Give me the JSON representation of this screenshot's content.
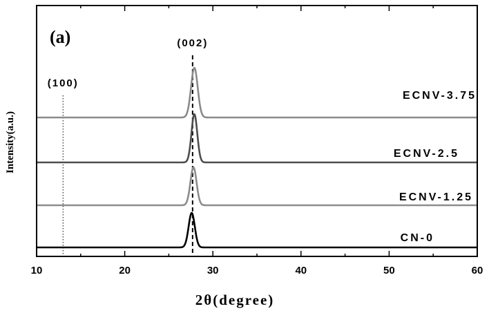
{
  "chart_data": {
    "type": "line",
    "panel_label": "(a)",
    "xlabel": "2θ(degree)",
    "ylabel": "Intensity(a.u.)",
    "xlim": [
      10,
      60
    ],
    "xticks": [
      10,
      20,
      30,
      40,
      50,
      60
    ],
    "y_ticks_shown": false,
    "grid": false,
    "annotations": [
      {
        "text": "(002)",
        "x": 27.7,
        "line_style": "dashed"
      },
      {
        "text": "(100)",
        "x": 13.0,
        "line_style": "dotted"
      }
    ],
    "series": [
      {
        "name": "CN-0",
        "color": "#000000",
        "offset": 0,
        "peaks": [
          {
            "x": 27.6,
            "height": 50,
            "width": 0.35
          }
        ]
      },
      {
        "name": "ECNV-1.25",
        "color": "#8c8c8c",
        "offset": 1,
        "peaks": [
          {
            "x": 27.8,
            "height": 55,
            "width": 0.35
          }
        ]
      },
      {
        "name": "ECNV-2.5",
        "color": "#4d4d4d",
        "offset": 2,
        "peaks": [
          {
            "x": 27.9,
            "height": 70,
            "width": 0.33
          }
        ]
      },
      {
        "name": "ECNV-3.75",
        "color": "#8a8a8a",
        "offset": 3,
        "peaks": [
          {
            "x": 27.9,
            "height": 72,
            "width": 0.38
          }
        ]
      }
    ]
  }
}
